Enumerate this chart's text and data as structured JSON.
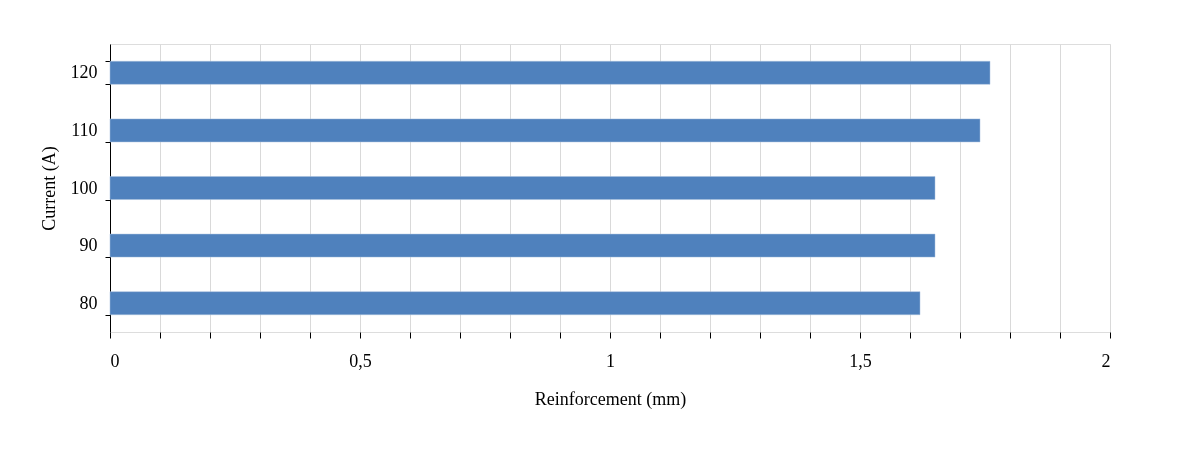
{
  "chart_data": {
    "type": "bar",
    "orientation": "horizontal",
    "xlabel": "Reinforcement (mm)",
    "ylabel": "Current (A)",
    "categories": [
      "120",
      "110",
      "100",
      "90",
      "80"
    ],
    "values": [
      1.76,
      1.74,
      1.65,
      1.65,
      1.62
    ],
    "color": "#4f81bd",
    "xlim": [
      0,
      2
    ],
    "xticks": [
      0,
      {
        "value": 0.1,
        "label": null
      },
      {
        "value": 0.2,
        "label": null
      },
      {
        "value": 0.3,
        "label": null
      },
      {
        "value": 0.4,
        "label": null
      },
      {
        "value": 0.5,
        "label": "0,5"
      },
      {
        "value": 0.6,
        "label": null
      },
      {
        "value": 0.7,
        "label": null
      },
      {
        "value": 0.8,
        "label": null
      },
      {
        "value": 0.9,
        "label": null
      },
      1,
      {
        "value": 1.1,
        "label": null
      },
      {
        "value": 1.2,
        "label": null
      },
      {
        "value": 1.3,
        "label": null
      },
      {
        "value": 1.4,
        "label": null
      },
      {
        "value": 1.5,
        "label": "1,5"
      },
      {
        "value": 1.6,
        "label": null
      },
      {
        "value": 1.7,
        "label": null
      },
      {
        "value": 1.8,
        "label": null
      },
      {
        "value": 1.9,
        "label": null
      },
      2
    ],
    "grid": "x"
  }
}
